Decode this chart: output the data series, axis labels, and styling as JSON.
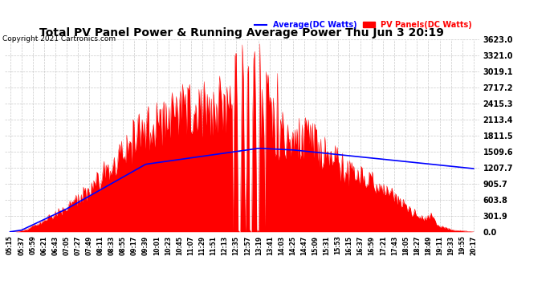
{
  "title": "Total PV Panel Power & Running Average Power Thu Jun 3 20:19",
  "copyright": "Copyright 2021 Cartronics.com",
  "legend_avg": "Average(DC Watts)",
  "legend_pv": "PV Panels(DC Watts)",
  "ymax": 3623.0,
  "ymin": 0.0,
  "yticks": [
    0.0,
    301.9,
    603.8,
    905.7,
    1207.7,
    1509.6,
    1811.5,
    2113.4,
    2415.3,
    2717.2,
    3019.1,
    3321.0,
    3623.0
  ],
  "xtick_labels": [
    "05:15",
    "05:37",
    "05:59",
    "06:21",
    "06:43",
    "07:05",
    "07:27",
    "07:49",
    "08:11",
    "08:33",
    "08:55",
    "09:17",
    "09:39",
    "10:01",
    "10:23",
    "10:45",
    "11:07",
    "11:29",
    "11:51",
    "12:13",
    "12:35",
    "12:57",
    "13:19",
    "13:41",
    "14:03",
    "14:25",
    "14:47",
    "15:09",
    "15:31",
    "15:53",
    "16:15",
    "16:37",
    "16:59",
    "17:21",
    "17:43",
    "18:05",
    "18:27",
    "18:49",
    "19:11",
    "19:33",
    "19:55",
    "20:17"
  ],
  "pv_color": "#ff0000",
  "avg_color": "#0000ff",
  "grid_color": "#bbbbbb",
  "bg_color": "#ffffff",
  "title_color": "#000000",
  "copyright_color": "#000000",
  "legend_avg_color": "#0000ff",
  "legend_pv_color": "#ff0000"
}
